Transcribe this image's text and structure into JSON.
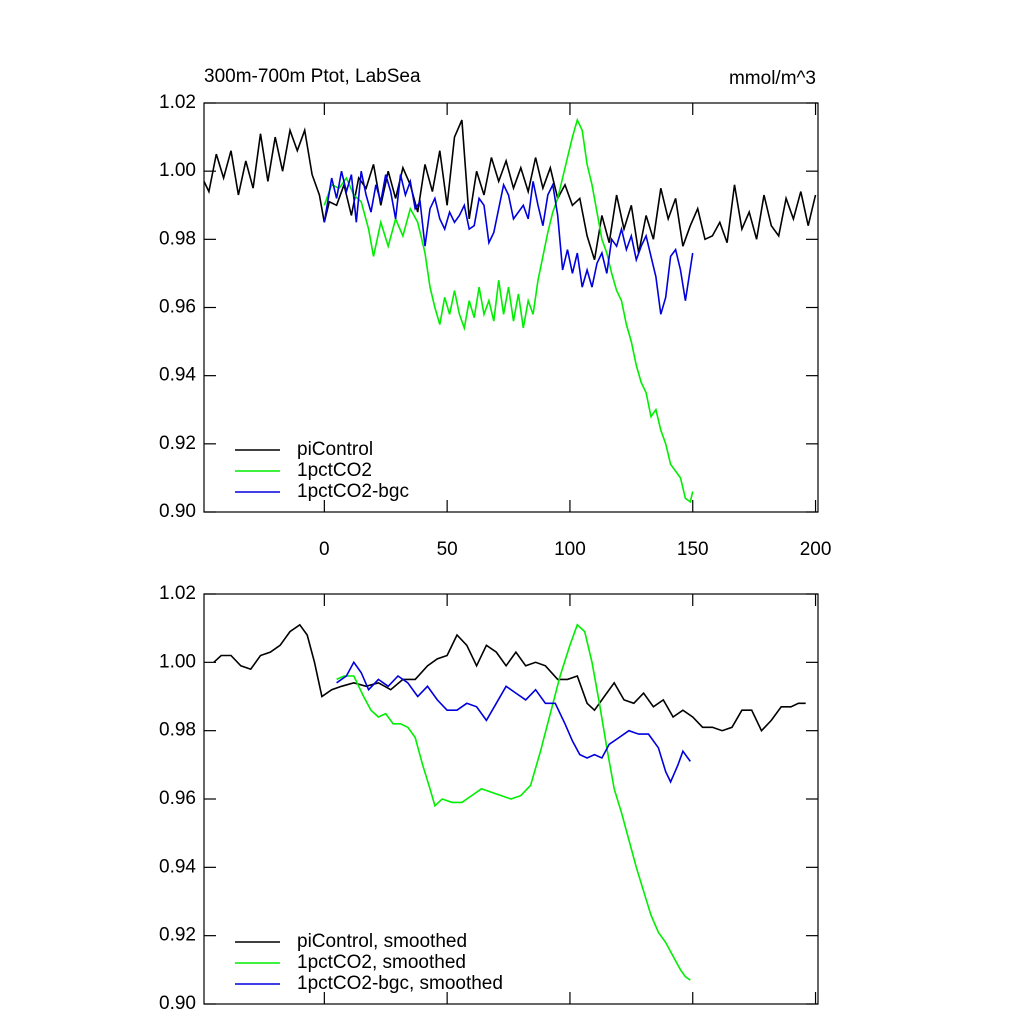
{
  "chart_data": [
    {
      "type": "line",
      "title": "300m-700m Ptot, LabSea",
      "subtitle": "mmol/m^3",
      "xlim": [
        -49,
        201
      ],
      "xticks": [
        0,
        50,
        100,
        150,
        200
      ],
      "ylim": [
        0.9,
        1.02
      ],
      "yticks": [
        {
          "value": 0.9,
          "label": "0.90"
        },
        0.92,
        0.94,
        0.96,
        0.98,
        {
          "value": 1,
          "label": "1.00"
        },
        1.02
      ],
      "legend": "lower left",
      "series": [
        {
          "name": "piControl",
          "color": "#000000",
          "x": [
            -49,
            -47,
            -44,
            -41,
            -38,
            -35,
            -32,
            -29,
            -26,
            -23,
            -20,
            -17,
            -14,
            -11,
            -8,
            -5,
            -2,
            0,
            2,
            5,
            8,
            11,
            14,
            17,
            20,
            23,
            26,
            29,
            32,
            35,
            38,
            41,
            44,
            47,
            50,
            53,
            56,
            59,
            62,
            65,
            68,
            71,
            74,
            77,
            80,
            83,
            86,
            89,
            92,
            95,
            98,
            101,
            104,
            107,
            110,
            113,
            116,
            119,
            122,
            125,
            128,
            131,
            134,
            137,
            140,
            143,
            146,
            149,
            152,
            155,
            158,
            161,
            164,
            167,
            170,
            173,
            176,
            179,
            182,
            185,
            188,
            191,
            194,
            197,
            200
          ],
          "values": [
            0.997,
            0.994,
            1.005,
            0.998,
            1.006,
            0.993,
            1.003,
            0.995,
            1.011,
            0.997,
            1.01,
            1.0,
            1.012,
            1.006,
            1.012,
            0.999,
            0.993,
            0.985,
            0.991,
            0.99,
            0.996,
            0.987,
            0.998,
            0.995,
            1.002,
            0.99,
            1.0,
            0.992,
            1.001,
            0.996,
            0.988,
            1.002,
            0.994,
            1.006,
            0.99,
            1.01,
            1.015,
            0.986,
            1.0,
            0.993,
            1.004,
            0.997,
            1.003,
            0.995,
            1.001,
            0.994,
            1.004,
            0.995,
            1.001,
            0.992,
            0.996,
            0.99,
            0.992,
            0.981,
            0.974,
            0.987,
            0.979,
            0.993,
            0.983,
            0.99,
            0.976,
            0.987,
            0.98,
            0.995,
            0.986,
            0.992,
            0.978,
            0.984,
            0.989,
            0.98,
            0.981,
            0.985,
            0.979,
            0.996,
            0.983,
            0.988,
            0.98,
            0.993,
            0.984,
            0.981,
            0.992,
            0.986,
            0.994,
            0.984,
            0.993
          ]
        },
        {
          "name": "1pctCO2",
          "color": "#00ee00",
          "x": [
            0,
            3,
            6,
            9,
            12,
            15,
            18,
            20,
            23,
            26,
            29,
            32,
            35,
            38,
            41,
            43,
            45,
            47,
            49,
            51,
            53,
            55,
            57,
            59,
            61,
            63,
            65,
            67,
            69,
            71,
            73,
            75,
            77,
            79,
            81,
            83,
            85,
            87,
            89,
            91,
            93,
            95,
            97,
            99,
            101,
            103,
            105,
            107,
            109,
            111,
            113,
            115,
            117,
            119,
            121,
            123,
            125,
            127,
            129,
            131,
            133,
            135,
            137,
            139,
            141,
            143,
            145,
            147,
            149,
            150
          ],
          "values": [
            0.99,
            0.996,
            0.995,
            0.998,
            0.993,
            0.991,
            0.983,
            0.975,
            0.985,
            0.978,
            0.986,
            0.981,
            0.989,
            0.985,
            0.976,
            0.966,
            0.96,
            0.955,
            0.963,
            0.958,
            0.965,
            0.958,
            0.954,
            0.962,
            0.957,
            0.966,
            0.958,
            0.962,
            0.956,
            0.968,
            0.958,
            0.966,
            0.956,
            0.964,
            0.954,
            0.962,
            0.958,
            0.968,
            0.975,
            0.982,
            0.988,
            0.992,
            0.998,
            1.004,
            1.01,
            1.015,
            1.012,
            1.002,
            0.996,
            0.988,
            0.98,
            0.976,
            0.97,
            0.965,
            0.962,
            0.955,
            0.95,
            0.943,
            0.938,
            0.935,
            0.928,
            0.93,
            0.924,
            0.92,
            0.914,
            0.912,
            0.91,
            0.904,
            0.903,
            0.906
          ]
        },
        {
          "name": "1pctCO2-bgc",
          "color": "#0000dd",
          "x": [
            0,
            3,
            5,
            7,
            9,
            11,
            13,
            15,
            17,
            19,
            21,
            23,
            25,
            27,
            29,
            31,
            33,
            35,
            37,
            39,
            41,
            43,
            45,
            47,
            49,
            51,
            53,
            55,
            57,
            59,
            61,
            63,
            65,
            67,
            69,
            71,
            73,
            75,
            77,
            79,
            81,
            83,
            85,
            87,
            89,
            91,
            93,
            95,
            97,
            99,
            101,
            103,
            105,
            107,
            109,
            111,
            113,
            115,
            117,
            119,
            121,
            123,
            125,
            127,
            129,
            131,
            133,
            135,
            137,
            139,
            141,
            143,
            145,
            147,
            150
          ],
          "values": [
            0.985,
            0.998,
            0.992,
            1.0,
            0.994,
            0.999,
            0.985,
            1.0,
            0.993,
            0.988,
            0.996,
            0.991,
            0.999,
            0.994,
            0.986,
            0.999,
            0.993,
            0.997,
            0.989,
            0.991,
            0.978,
            0.989,
            0.992,
            0.986,
            0.983,
            0.988,
            0.985,
            0.987,
            0.99,
            0.983,
            0.984,
            0.992,
            0.99,
            0.979,
            0.982,
            0.989,
            0.996,
            0.993,
            0.986,
            0.988,
            0.99,
            0.986,
            0.997,
            0.99,
            0.984,
            0.993,
            0.996,
            0.987,
            0.971,
            0.977,
            0.97,
            0.976,
            0.966,
            0.971,
            0.966,
            0.973,
            0.976,
            0.97,
            0.98,
            0.978,
            0.983,
            0.977,
            0.981,
            0.974,
            0.978,
            0.981,
            0.975,
            0.969,
            0.958,
            0.963,
            0.975,
            0.977,
            0.971,
            0.962,
            0.976
          ]
        }
      ]
    },
    {
      "type": "line",
      "xlim": [
        -49,
        201
      ],
      "xticks": [
        0,
        50,
        100,
        150,
        200
      ],
      "ylim": [
        0.9,
        1.02
      ],
      "yticks": [
        {
          "value": 0.9,
          "label": "0.90"
        },
        0.92,
        0.94,
        0.96,
        0.98,
        {
          "value": 1,
          "label": "1.00"
        },
        1.02
      ],
      "legend": "lower left",
      "series": [
        {
          "name": "piControl, smoothed",
          "color": "#000000",
          "x": [
            -45,
            -42,
            -38,
            -34,
            -30,
            -26,
            -22,
            -18,
            -14,
            -10,
            -7,
            -4,
            -1,
            3,
            7,
            12,
            17,
            22,
            27,
            32,
            37,
            42,
            46,
            50,
            54,
            58,
            62,
            66,
            70,
            74,
            78,
            82,
            86,
            90,
            95,
            99,
            103,
            107,
            110,
            114,
            118,
            122,
            126,
            130,
            134,
            138,
            142,
            146,
            150,
            154,
            158,
            162,
            166,
            170,
            174,
            178,
            182,
            186,
            190,
            193,
            196
          ],
          "values": [
            1.0,
            1.002,
            1.002,
            0.999,
            0.998,
            1.002,
            1.003,
            1.005,
            1.009,
            1.011,
            1.008,
            1.0,
            0.99,
            0.992,
            0.993,
            0.994,
            0.993,
            0.994,
            0.992,
            0.995,
            0.995,
            0.999,
            1.001,
            1.002,
            1.008,
            1.005,
            0.999,
            1.005,
            1.003,
            0.999,
            1.003,
            0.999,
            1.0,
            0.999,
            0.995,
            0.995,
            0.996,
            0.988,
            0.986,
            0.99,
            0.994,
            0.989,
            0.988,
            0.991,
            0.987,
            0.989,
            0.984,
            0.986,
            0.984,
            0.981,
            0.981,
            0.98,
            0.981,
            0.986,
            0.986,
            0.98,
            0.983,
            0.987,
            0.987,
            0.988,
            0.988
          ]
        },
        {
          "name": "1pctCO2, smoothed",
          "color": "#00ee00",
          "x": [
            5,
            8,
            12,
            16,
            19,
            22,
            25,
            28,
            31,
            34,
            37,
            40,
            43,
            45,
            48,
            52,
            56,
            60,
            64,
            68,
            72,
            76,
            80,
            84,
            88,
            92,
            96,
            100,
            103,
            106,
            109,
            112,
            115,
            118,
            121,
            124,
            127,
            130,
            133,
            136,
            139,
            142,
            145,
            147,
            149
          ],
          "values": [
            0.995,
            0.996,
            0.996,
            0.99,
            0.986,
            0.984,
            0.985,
            0.982,
            0.982,
            0.981,
            0.978,
            0.97,
            0.963,
            0.958,
            0.96,
            0.959,
            0.959,
            0.961,
            0.963,
            0.962,
            0.961,
            0.96,
            0.961,
            0.964,
            0.974,
            0.985,
            0.996,
            1.005,
            1.011,
            1.009,
            1.0,
            0.988,
            0.975,
            0.963,
            0.956,
            0.948,
            0.94,
            0.933,
            0.926,
            0.921,
            0.918,
            0.914,
            0.91,
            0.908,
            0.907
          ]
        },
        {
          "name": "1pctCO2-bgc, smoothed",
          "color": "#0000dd",
          "x": [
            5,
            9,
            12,
            15,
            18,
            22,
            26,
            30,
            34,
            38,
            42,
            46,
            50,
            54,
            58,
            62,
            66,
            70,
            74,
            78,
            82,
            86,
            90,
            94,
            98,
            101,
            104,
            107,
            110,
            113,
            116,
            120,
            124,
            128,
            132,
            136,
            139,
            141,
            144,
            146,
            149
          ],
          "values": [
            0.994,
            0.996,
            1.0,
            0.997,
            0.992,
            0.995,
            0.993,
            0.996,
            0.994,
            0.99,
            0.993,
            0.989,
            0.986,
            0.986,
            0.988,
            0.987,
            0.983,
            0.988,
            0.993,
            0.991,
            0.989,
            0.992,
            0.988,
            0.988,
            0.982,
            0.977,
            0.973,
            0.972,
            0.973,
            0.972,
            0.976,
            0.978,
            0.98,
            0.979,
            0.979,
            0.975,
            0.968,
            0.965,
            0.97,
            0.974,
            0.971
          ]
        }
      ]
    }
  ]
}
